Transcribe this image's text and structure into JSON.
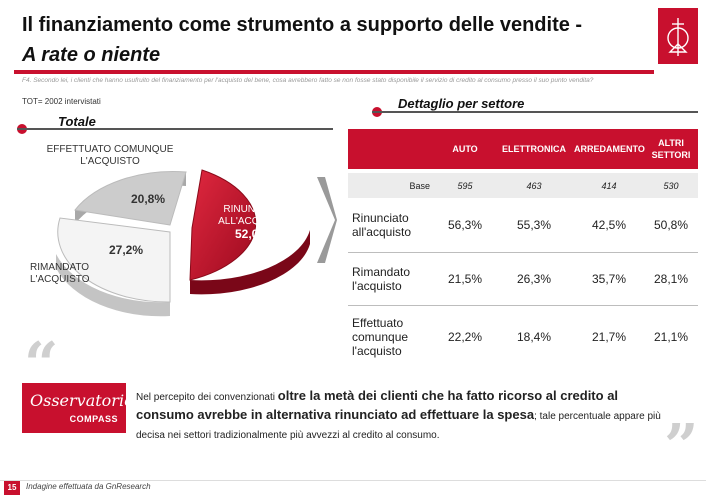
{
  "header": {
    "title_line1": "Il finanziamento come strumento a supporto delle vendite -",
    "title_line2": "A rate o niente"
  },
  "question": "F4. Secondo lei, i clienti che hanno usufruito del finanziamento per l'acquisto del bene, cosa avrebbero fatto se non fosse stato disponibile il servizio di credito al consumo presso il suo punto vendita?",
  "tot": "TOT= 2002 intervistati",
  "left_section": {
    "title": "Totale",
    "slices": [
      {
        "label": "RINUNCIATO ALL'ACQUISTO",
        "value": "52,0%",
        "pct": 52.0,
        "color": "#c8102e"
      },
      {
        "label": "RIMANDATO L'ACQUISTO",
        "value": "27,2%",
        "pct": 27.2,
        "color": "#f2f2f2"
      },
      {
        "label": "EFFETTUATO COMUNQUE L'ACQUISTO",
        "value": "20,8%",
        "pct": 20.8,
        "color": "#cccccc"
      }
    ]
  },
  "right_section": {
    "title": "Dettaglio per settore",
    "columns": [
      "AUTO",
      "ELETTRONICA",
      "ARREDAMENTO",
      "ALTRI SETTORI"
    ],
    "base_label": "Base",
    "base_values": [
      "595",
      "463",
      "414",
      "530"
    ],
    "rows": [
      {
        "label": "Rinunciato all'acquisto",
        "values": [
          "56,3%",
          "55,3%",
          "42,5%",
          "50,8%"
        ]
      },
      {
        "label": "Rimandato l'acquisto",
        "values": [
          "21,5%",
          "26,3%",
          "35,7%",
          "28,1%"
        ]
      },
      {
        "label": "Effettuato comunque l'acquisto",
        "values": [
          "22,2%",
          "18,4%",
          "21,7%",
          "21,1%"
        ]
      }
    ]
  },
  "brand": {
    "line1": "Osservatorio",
    "line2": "COMPASS",
    "accent": "#c8102e"
  },
  "conclusion": {
    "p1": "Nel percepito dei convenzionati ",
    "p2": "oltre la metà dei clienti che ha fatto ricorso al credito al consumo avrebbe in alternativa rinunciato ad effettuare la spesa",
    "p3": "; tale percentuale appare più decisa nei settori tradizionalmente più avvezzi al credito al consumo."
  },
  "footer": {
    "page_number": "15",
    "source": "Indagine effettuata da GnResearch"
  }
}
